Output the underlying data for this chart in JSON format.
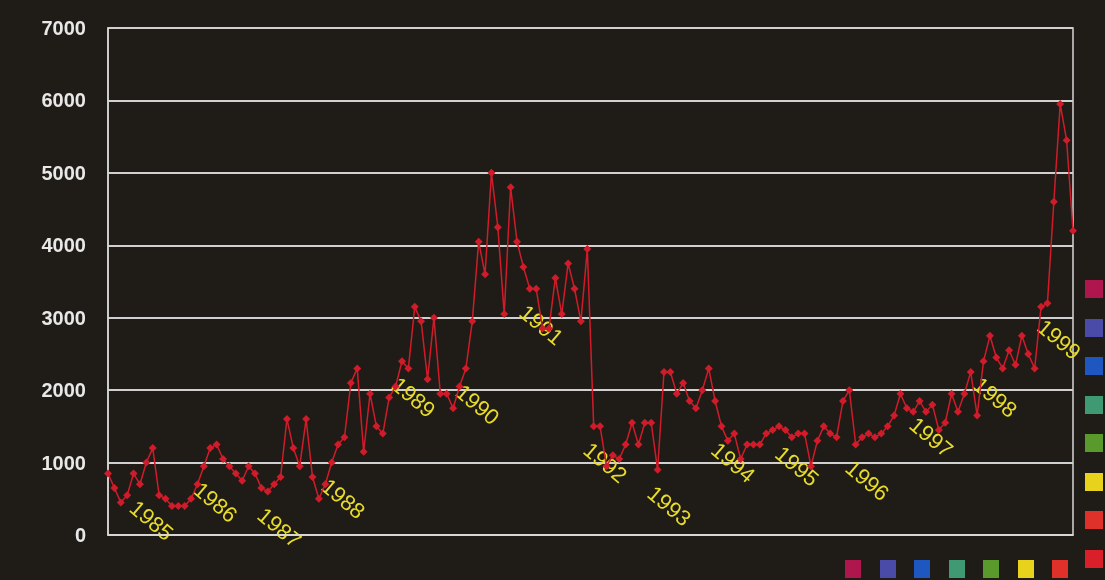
{
  "chart_data": {
    "type": "line",
    "marker": "diamond",
    "grid": "y",
    "ylim": [
      0,
      7000
    ],
    "yticks": [
      0,
      1000,
      2000,
      3000,
      4000,
      5000,
      6000,
      7000
    ],
    "categories": [
      null,
      null,
      null,
      null,
      null,
      null,
      null,
      null,
      null,
      null,
      null,
      null,
      null,
      null,
      null,
      null,
      null,
      null,
      null,
      null,
      null,
      null,
      null,
      null,
      null,
      null,
      null,
      null,
      null,
      null,
      null,
      null,
      null,
      null,
      null,
      null,
      null,
      null,
      null,
      null,
      null,
      null,
      null,
      null,
      null,
      null,
      null,
      null,
      null,
      null,
      null,
      null,
      null,
      null,
      null,
      null,
      null,
      null,
      null,
      null,
      null,
      null,
      null,
      null,
      null,
      null,
      null,
      null,
      null,
      null,
      null,
      null,
      null,
      null,
      null,
      null,
      null,
      null,
      null,
      null,
      null,
      null,
      null,
      null,
      null,
      null,
      null,
      null,
      null,
      null,
      null,
      null,
      null,
      null,
      null,
      null,
      null,
      null,
      null,
      null,
      null,
      null,
      null,
      null,
      null,
      null,
      null,
      null,
      null,
      null,
      null,
      null,
      null,
      null,
      null,
      null,
      null,
      null,
      null,
      null,
      null,
      null,
      null,
      null,
      null,
      null,
      null,
      null,
      null,
      null,
      null,
      null,
      null,
      null,
      null,
      null,
      null,
      null,
      null,
      null,
      null,
      null,
      null,
      null,
      null,
      null,
      null,
      null,
      null,
      null,
      null,
      null
    ],
    "series": [
      {
        "color": "#d01c2a",
        "values": [
          850,
          650,
          450,
          550,
          850,
          700,
          1000,
          1200,
          550,
          500,
          400,
          400,
          400,
          500,
          700,
          950,
          1200,
          1250,
          1050,
          950,
          850,
          750,
          950,
          850,
          650,
          600,
          700,
          800,
          1600,
          1200,
          950,
          1600,
          800,
          500,
          700,
          1000,
          1250,
          1350,
          2100,
          2300,
          1150,
          1950,
          1500,
          1400,
          1900,
          2050,
          2400,
          2300,
          3150,
          2950,
          2150,
          3000,
          1950,
          1950,
          1750,
          2050,
          2300,
          2950,
          4050,
          3600,
          5000,
          4250,
          3050,
          4800,
          4050,
          3700,
          3400,
          3400,
          2850,
          2850,
          3550,
          3050,
          3750,
          3400,
          2950,
          3950,
          1500,
          1500,
          950,
          1100,
          1050,
          1250,
          1550,
          1250,
          1550,
          1550,
          900,
          2250,
          2250,
          1950,
          2100,
          1850,
          1750,
          2000,
          2300,
          1850,
          1500,
          1300,
          1400,
          1050,
          1250,
          1250,
          1250,
          1400,
          1450,
          1500,
          1450,
          1350,
          1400,
          1400,
          950,
          1300,
          1500,
          1400,
          1350,
          1850,
          2000,
          1250,
          1350,
          1400,
          1350,
          1400,
          1500,
          1650,
          1950,
          1750,
          1700,
          1850,
          1700,
          1800,
          1450,
          1550,
          1950,
          1700,
          1950,
          2250,
          1650,
          2400,
          2750,
          2450,
          2300,
          2550,
          2350,
          2750,
          2500,
          2300,
          3150,
          3200,
          4600,
          5950,
          5450,
          4200
        ]
      }
    ],
    "annotations": [
      "1985",
      "1986",
      "1987",
      "1988",
      "1989",
      "1990",
      "1991",
      "1992",
      "1993",
      "1994",
      "1995",
      "1996",
      "1997",
      "1998",
      "1999"
    ]
  }
}
